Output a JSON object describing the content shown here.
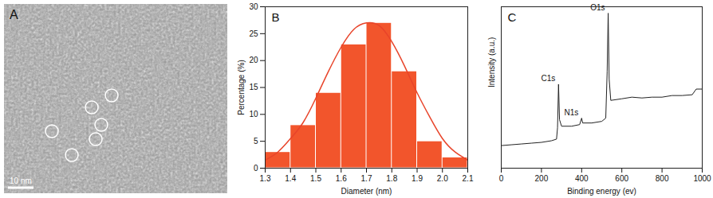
{
  "chart_data": [
    {
      "type": "image",
      "title": "A",
      "scale_bar": "10 nm"
    },
    {
      "type": "histogram",
      "title": "B",
      "bins": [
        1.3,
        1.4,
        1.5,
        1.6,
        1.7,
        1.8,
        1.9,
        2.0,
        2.1
      ],
      "values": [
        3,
        8,
        14,
        23,
        27,
        18,
        5,
        2
      ],
      "color": "#f2552c",
      "fit": {
        "color": "#e8442a",
        "x": [
          1.3,
          1.35,
          1.4,
          1.45,
          1.5,
          1.55,
          1.6,
          1.65,
          1.7,
          1.75,
          1.8,
          1.85,
          1.9,
          1.95,
          2.0,
          2.05,
          2.1
        ],
        "values": [
          1.5,
          3,
          5.5,
          8.5,
          13,
          18,
          22.5,
          25.8,
          27,
          26.5,
          23.5,
          19,
          14,
          9.5,
          5.5,
          3,
          1.5
        ]
      },
      "x_label": "Diameter (nm)",
      "y_label": "Percentage (%)",
      "xlim": [
        1.3,
        2.1
      ],
      "xticks": [
        1.3,
        1.4,
        1.5,
        1.6,
        1.7,
        1.8,
        1.9,
        {
          "value": 2,
          "label": "2.0"
        },
        2.1
      ],
      "ylim": [
        0,
        30
      ],
      "yticks": [
        0,
        5,
        10,
        15,
        20,
        25,
        30
      ],
      "grid": false
    },
    {
      "type": "line",
      "title": "C",
      "x": [
        0,
        50,
        100,
        150,
        200,
        250,
        275,
        280,
        285,
        290,
        300,
        350,
        390,
        400,
        405,
        450,
        500,
        520,
        527,
        532,
        537,
        545,
        600,
        650,
        700,
        750,
        800,
        850,
        900,
        950,
        970,
        1000
      ],
      "values": [
        14,
        14.5,
        15,
        15.5,
        16,
        17,
        18,
        25,
        52,
        30,
        26,
        26,
        27,
        31,
        28,
        28,
        29,
        31,
        60,
        96,
        55,
        42,
        43,
        44,
        43.5,
        44,
        44,
        45,
        45,
        45.5,
        49,
        49
      ],
      "color": "#222222",
      "annotations": [
        {
          "text": "C1s",
          "x": 285,
          "y": 52
        },
        {
          "text": "N1s",
          "x": 400,
          "y": 31
        },
        {
          "text": "O1s",
          "x": 532,
          "y": 96
        }
      ],
      "x_label": "Binding energy (ev)",
      "y_label": "Intensity (a.u.)",
      "xlim": [
        0,
        1000
      ],
      "xticks": [
        0,
        200,
        400,
        600,
        800,
        1000
      ],
      "ylim": [
        0,
        100
      ],
      "yticks": [],
      "tick_labels": "x",
      "grid": false
    }
  ]
}
